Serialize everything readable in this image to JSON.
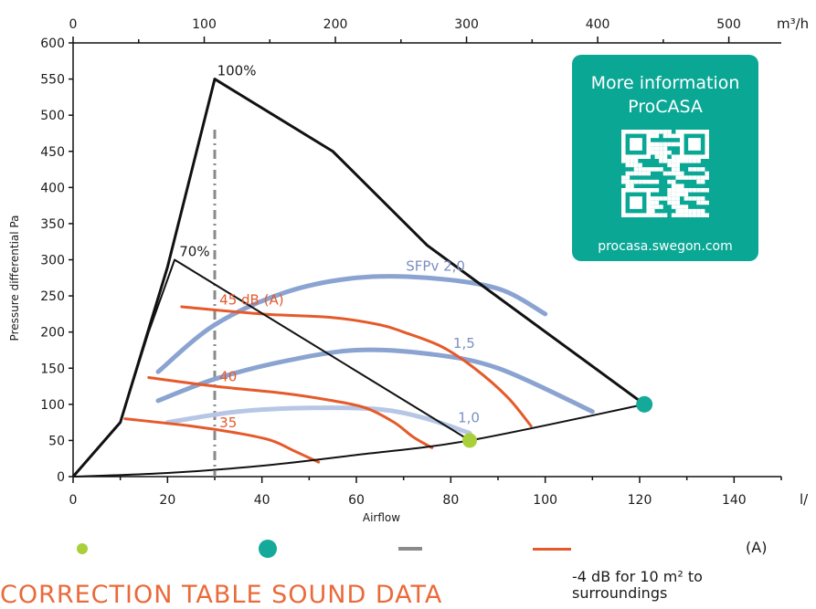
{
  "chart_data": {
    "type": "line",
    "xlabel": "Airflow",
    "ylabel": "Pressure differential Pa",
    "x_unit": "l/",
    "x2_unit": "m³/h",
    "xlim": [
      0,
      150
    ],
    "x2lim": [
      0,
      540
    ],
    "ylim": [
      0,
      600
    ],
    "x_ticks": [
      0,
      20,
      40,
      60,
      80,
      100,
      120,
      140
    ],
    "x2_ticks": [
      0,
      100,
      200,
      300,
      400,
      500
    ],
    "y_ticks": [
      0,
      50,
      100,
      150,
      200,
      250,
      300,
      350,
      400,
      450,
      500,
      550,
      600
    ],
    "grid": false,
    "colors": {
      "sfp": "#8aa3d1",
      "sfp_light": "#b7c6e5",
      "db": "#e55a2b",
      "fan": "#111111",
      "green_dot": "#a9cf3b",
      "teal_dot": "#15a99a",
      "grey_dash": "#8a8a8a",
      "info_box": "#0aa795",
      "correction_title": "#ea6a3a"
    },
    "fan_curves": [
      {
        "label": "100%",
        "points": [
          [
            0,
            0
          ],
          [
            10,
            75
          ],
          [
            20,
            290
          ],
          [
            30,
            550
          ],
          [
            55,
            450
          ],
          [
            75,
            320
          ],
          [
            121,
            100
          ]
        ]
      },
      {
        "label": "70%",
        "points": [
          [
            0,
            0
          ],
          [
            10,
            75
          ],
          [
            16,
            200
          ],
          [
            21.5,
            300
          ],
          [
            84,
            50
          ]
        ]
      }
    ],
    "system_curve": [
      [
        0,
        0
      ],
      [
        20,
        5
      ],
      [
        40,
        15
      ],
      [
        60,
        30
      ],
      [
        84,
        50
      ],
      [
        121,
        100
      ]
    ],
    "sfp_curves": [
      {
        "label": "SFPv 2,0",
        "points": [
          [
            18,
            145
          ],
          [
            30,
            210
          ],
          [
            45,
            255
          ],
          [
            60,
            275
          ],
          [
            75,
            275
          ],
          [
            90,
            260
          ],
          [
            100,
            225
          ]
        ]
      },
      {
        "label": "1,5",
        "points": [
          [
            18,
            105
          ],
          [
            30,
            135
          ],
          [
            45,
            160
          ],
          [
            60,
            175
          ],
          [
            75,
            170
          ],
          [
            90,
            150
          ],
          [
            110,
            90
          ]
        ]
      },
      {
        "label": "1,0",
        "points": [
          [
            20,
            75
          ],
          [
            35,
            90
          ],
          [
            50,
            95
          ],
          [
            65,
            93
          ],
          [
            75,
            80
          ],
          [
            84,
            60
          ]
        ]
      }
    ],
    "sound_curves": [
      {
        "label": "45 dB (A)",
        "points": [
          [
            23,
            235
          ],
          [
            40,
            225
          ],
          [
            55,
            220
          ],
          [
            65,
            210
          ],
          [
            70,
            200
          ],
          [
            78,
            180
          ],
          [
            85,
            150
          ],
          [
            92,
            110
          ],
          [
            97,
            70
          ]
        ]
      },
      {
        "label": "40",
        "points": [
          [
            16,
            137
          ],
          [
            30,
            125
          ],
          [
            45,
            115
          ],
          [
            55,
            105
          ],
          [
            62,
            95
          ],
          [
            68,
            75
          ],
          [
            72,
            55
          ],
          [
            76,
            40
          ]
        ]
      },
      {
        "label": "35",
        "points": [
          [
            11,
            80
          ],
          [
            25,
            70
          ],
          [
            35,
            60
          ],
          [
            42,
            50
          ],
          [
            47,
            35
          ],
          [
            52,
            20
          ]
        ]
      }
    ],
    "min_airflow": 30,
    "green_point": [
      84,
      50
    ],
    "teal_point": [
      121,
      100
    ]
  },
  "info": {
    "title_line1": "More information",
    "title_line2": "ProCASA",
    "url": "procasa.swegon.com"
  },
  "legend": {
    "db_a_label": "(A)",
    "note_line1": "-4 dB for 10 m² to",
    "note_line2": "surroundings",
    "correction_title": "CORRECTION TABLE SOUND DATA"
  }
}
